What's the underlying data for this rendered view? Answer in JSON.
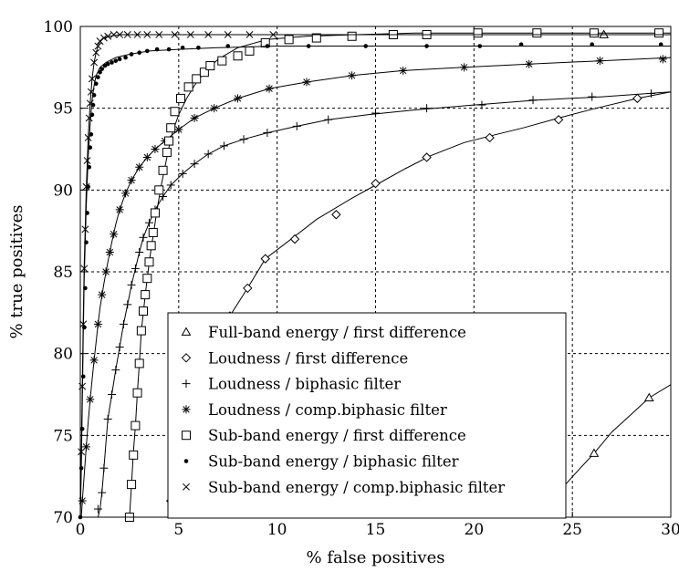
{
  "chart_data": {
    "type": "line",
    "title": "",
    "xlabel": "% false positives",
    "ylabel": "% true positives",
    "xlim": [
      0,
      30
    ],
    "ylim": [
      70,
      100
    ],
    "x_ticks": [
      "0",
      "5",
      "10",
      "15",
      "20",
      "25",
      "30"
    ],
    "y_ticks": [
      "70",
      "75",
      "80",
      "85",
      "90",
      "95",
      "100"
    ],
    "grid": true,
    "legend_position": "lower-center",
    "series": [
      {
        "name": "Full-band energy / first difference",
        "marker": "triangle",
        "x": [
          23.2,
          23.7,
          24.5,
          25.4,
          26.1,
          27.0,
          28.0,
          28.9,
          30.0
        ],
        "y": [
          70.0,
          70.5,
          71.8,
          73.0,
          73.9,
          75.2,
          76.3,
          77.3,
          78.1
        ],
        "marker_x": [
          23.7,
          26.1,
          28.9,
          26.6
        ],
        "marker_y": [
          70.5,
          73.9,
          77.3,
          99.5
        ]
      },
      {
        "name": "Loudness / first difference",
        "marker": "diamond",
        "x": [
          4.5,
          4.6,
          5.5,
          6.5,
          7.6,
          8.5,
          9.4,
          10.5,
          12.0,
          13.8,
          15.0,
          16.5,
          17.8,
          19.5,
          20.8,
          22.5,
          24.3,
          26.2,
          28.3,
          30.0
        ],
        "y": [
          70.0,
          71.0,
          74.0,
          78.0,
          82.3,
          84.0,
          85.8,
          86.8,
          88.2,
          89.5,
          90.3,
          91.3,
          92.1,
          92.9,
          93.3,
          93.8,
          94.4,
          95.0,
          95.6,
          96.0
        ],
        "marker_x": [
          4.6,
          7.6,
          8.5,
          9.4,
          10.9,
          13.0,
          15.0,
          17.6,
          20.8,
          24.3,
          28.3
        ],
        "marker_y": [
          71.0,
          82.3,
          84.0,
          85.8,
          87.0,
          88.5,
          90.4,
          92.0,
          93.2,
          94.3,
          95.6
        ]
      },
      {
        "name": "Loudness /  biphasic filter",
        "marker": "plus",
        "x": [
          0.9,
          1.0,
          1.1,
          1.2,
          1.3,
          1.4,
          1.6,
          1.8,
          2.0,
          2.2,
          2.4,
          2.6,
          2.8,
          3.0,
          3.2,
          3.5,
          3.8,
          4.2,
          4.6,
          5.2,
          5.8,
          6.5,
          7.3,
          8.3,
          9.5,
          11.0,
          12.6,
          14.6,
          17.0,
          20.0,
          23.2,
          26.5,
          30.0
        ],
        "y": [
          70.0,
          70.5,
          71.5,
          73.0,
          74.5,
          76.0,
          77.5,
          79.0,
          80.4,
          81.8,
          83.0,
          84.2,
          85.2,
          86.2,
          87.1,
          88.0,
          88.8,
          89.6,
          90.3,
          91.0,
          91.6,
          92.2,
          92.7,
          93.1,
          93.5,
          93.9,
          94.3,
          94.6,
          94.9,
          95.2,
          95.5,
          95.7,
          96.0
        ],
        "marker_x": [
          0.9,
          1.1,
          1.2,
          1.4,
          1.6,
          1.8,
          2.0,
          2.2,
          2.4,
          2.6,
          2.8,
          3.0,
          3.2,
          3.5,
          3.8,
          4.2,
          4.6,
          5.2,
          5.8,
          6.5,
          7.3,
          8.3,
          9.5,
          11.0,
          12.6,
          15.0,
          17.6,
          20.4,
          23.0,
          26.0,
          29.0
        ],
        "marker_y": [
          70.5,
          71.5,
          73.0,
          76.0,
          77.5,
          79.0,
          80.4,
          81.8,
          83.0,
          84.2,
          85.2,
          86.2,
          87.1,
          88.0,
          88.8,
          89.6,
          90.3,
          91.0,
          91.6,
          92.2,
          92.7,
          93.1,
          93.5,
          93.9,
          94.3,
          94.7,
          95.0,
          95.2,
          95.5,
          95.7,
          95.9
        ]
      },
      {
        "name": "Loudness / comp.biphasic filter",
        "marker": "asterisk",
        "x": [
          0.05,
          0.1,
          0.2,
          0.3,
          0.4,
          0.5,
          0.6,
          0.7,
          0.8,
          0.9,
          1.0,
          1.2,
          1.4,
          1.6,
          1.8,
          2.0,
          2.3,
          2.6,
          3.0,
          3.4,
          3.8,
          4.3,
          5.0,
          5.8,
          6.8,
          8.0,
          9.6,
          11.5,
          13.8,
          16.4,
          19.5,
          22.8,
          26.4,
          30.0
        ],
        "y": [
          70.0,
          71.0,
          72.6,
          74.3,
          75.8,
          77.2,
          78.4,
          79.6,
          80.7,
          81.8,
          82.8,
          84.3,
          85.6,
          86.8,
          87.9,
          88.8,
          89.8,
          90.6,
          91.4,
          92.0,
          92.5,
          93.0,
          93.7,
          94.4,
          95.0,
          95.6,
          96.2,
          96.6,
          97.0,
          97.3,
          97.5,
          97.7,
          97.9,
          98.1
        ],
        "marker_x": [
          0.1,
          0.3,
          0.5,
          0.7,
          0.9,
          1.1,
          1.3,
          1.5,
          1.7,
          2.0,
          2.3,
          2.6,
          3.0,
          3.4,
          3.8,
          4.3,
          5.0,
          5.8,
          6.8,
          8.0,
          9.6,
          11.5,
          13.8,
          16.4,
          19.5,
          22.8,
          26.4,
          29.6
        ],
        "marker_y": [
          71.0,
          74.3,
          77.2,
          79.6,
          81.8,
          83.6,
          85.0,
          86.2,
          87.3,
          88.8,
          89.8,
          90.6,
          91.4,
          92.0,
          92.5,
          93.0,
          93.7,
          94.4,
          95.0,
          95.6,
          96.2,
          96.6,
          97.0,
          97.3,
          97.5,
          97.7,
          97.9,
          98.0
        ]
      },
      {
        "name": "Sub-band energy / first difference",
        "marker": "square",
        "x": [
          2.5,
          2.6,
          2.7,
          2.8,
          2.9,
          3.0,
          3.1,
          3.3,
          3.5,
          3.7,
          3.9,
          4.1,
          4.3,
          4.5,
          4.7,
          5.0,
          5.4,
          5.8,
          6.3,
          7.0,
          8.0,
          9.5,
          11.5,
          14.0,
          17.0,
          20.0,
          23.0,
          26.5,
          30.0
        ],
        "y": [
          70.0,
          72.0,
          74.0,
          75.6,
          77.6,
          79.4,
          81.4,
          83.6,
          85.6,
          87.2,
          88.8,
          90.2,
          91.4,
          92.6,
          93.6,
          94.6,
          95.6,
          96.4,
          97.2,
          98.0,
          98.7,
          99.2,
          99.4,
          99.5,
          99.6,
          99.6,
          99.6,
          99.6,
          99.6
        ],
        "marker_x": [
          2.5,
          2.6,
          2.7,
          2.8,
          2.9,
          3.0,
          3.1,
          3.2,
          3.3,
          3.4,
          3.5,
          3.6,
          3.7,
          3.8,
          4.0,
          4.2,
          4.4,
          4.5,
          4.6,
          4.8,
          5.1,
          5.5,
          5.9,
          6.3,
          6.6,
          7.2,
          8.0,
          8.6,
          9.4,
          10.6,
          12.0,
          13.8,
          15.9,
          17.6,
          20.2,
          23.2,
          26.1,
          29.4
        ],
        "marker_y": [
          70.0,
          72.0,
          73.8,
          75.6,
          77.6,
          79.4,
          81.4,
          82.6,
          83.6,
          84.6,
          85.6,
          86.6,
          87.4,
          88.6,
          90.0,
          91.2,
          92.3,
          93.0,
          93.8,
          94.8,
          95.6,
          96.3,
          96.8,
          97.2,
          97.6,
          97.9,
          98.2,
          98.5,
          99.0,
          99.2,
          99.3,
          99.4,
          99.5,
          99.5,
          99.6,
          99.6,
          99.6,
          99.6
        ]
      },
      {
        "name": "Sub-band energy / biphasic filter",
        "marker": "dot",
        "x": [
          0.0,
          0.05,
          0.1,
          0.15,
          0.2,
          0.3,
          0.4,
          0.5,
          0.6,
          0.7,
          0.8,
          1.0,
          1.3,
          1.8,
          2.5,
          3.5,
          5.0,
          7.0,
          10.0,
          14.0,
          20.0,
          25.0,
          30.0
        ],
        "y": [
          70.0,
          73.0,
          77.0,
          81.0,
          84.6,
          89.0,
          92.0,
          94.0,
          95.5,
          96.4,
          97.0,
          97.5,
          97.8,
          98.1,
          98.3,
          98.5,
          98.6,
          98.7,
          98.8,
          98.8,
          98.8,
          98.8,
          98.8
        ],
        "marker_x": [
          0.0,
          0.05,
          0.1,
          0.15,
          0.2,
          0.25,
          0.3,
          0.35,
          0.4,
          0.45,
          0.5,
          0.55,
          0.6,
          0.65,
          0.7,
          0.8,
          0.9,
          1.0,
          1.1,
          1.25,
          1.4,
          1.6,
          1.8,
          2.0,
          2.3,
          2.6,
          3.0,
          3.4,
          3.9,
          4.5,
          5.2,
          6.0,
          7.5,
          9.5,
          11.6,
          14.5,
          17.6,
          20.3,
          22.4,
          26.0,
          29.5
        ],
        "marker_y": [
          70.0,
          73.0,
          75.4,
          78.6,
          81.6,
          84.0,
          86.8,
          88.6,
          90.2,
          91.4,
          92.6,
          93.4,
          94.6,
          95.2,
          95.8,
          96.5,
          96.9,
          97.2,
          97.4,
          97.6,
          97.7,
          97.8,
          97.9,
          98.0,
          98.1,
          98.3,
          98.4,
          98.5,
          98.6,
          98.6,
          98.7,
          98.7,
          98.8,
          98.8,
          98.8,
          98.8,
          98.8,
          98.8,
          98.9,
          98.9,
          98.9
        ]
      },
      {
        "name": "Sub-band energy / comp.biphasic filter",
        "marker": "x",
        "x": [
          0.0,
          0.05,
          0.1,
          0.15,
          0.2,
          0.3,
          0.4,
          0.5,
          0.6,
          0.7,
          0.8,
          0.9,
          1.0,
          1.2,
          1.5,
          2.0,
          3.0,
          5.0,
          8.0,
          12.0,
          18.0,
          24.0,
          30.0
        ],
        "y": [
          70.0,
          74.0,
          78.0,
          82.0,
          85.5,
          90.0,
          93.2,
          95.3,
          96.8,
          97.8,
          98.4,
          98.8,
          99.1,
          99.3,
          99.4,
          99.5,
          99.5,
          99.5,
          99.5,
          99.5,
          99.5,
          99.5,
          99.5
        ],
        "marker_x": [
          0.05,
          0.1,
          0.15,
          0.2,
          0.25,
          0.3,
          0.35,
          0.4,
          0.45,
          0.5,
          0.55,
          0.6,
          0.7,
          0.8,
          0.9,
          1.0,
          1.2,
          1.4,
          1.7,
          2.0,
          2.4,
          2.9,
          3.4,
          4.0,
          4.8,
          5.6,
          6.5,
          7.5,
          8.6,
          9.8
        ],
        "marker_y": [
          74.0,
          78.0,
          81.8,
          85.2,
          87.6,
          90.2,
          91.8,
          93.2,
          94.4,
          95.3,
          96.0,
          96.8,
          97.8,
          98.4,
          98.8,
          99.1,
          99.3,
          99.4,
          99.5,
          99.5,
          99.5,
          99.5,
          99.5,
          99.5,
          99.5,
          99.5,
          99.5,
          99.5,
          99.5,
          99.5
        ]
      }
    ]
  }
}
